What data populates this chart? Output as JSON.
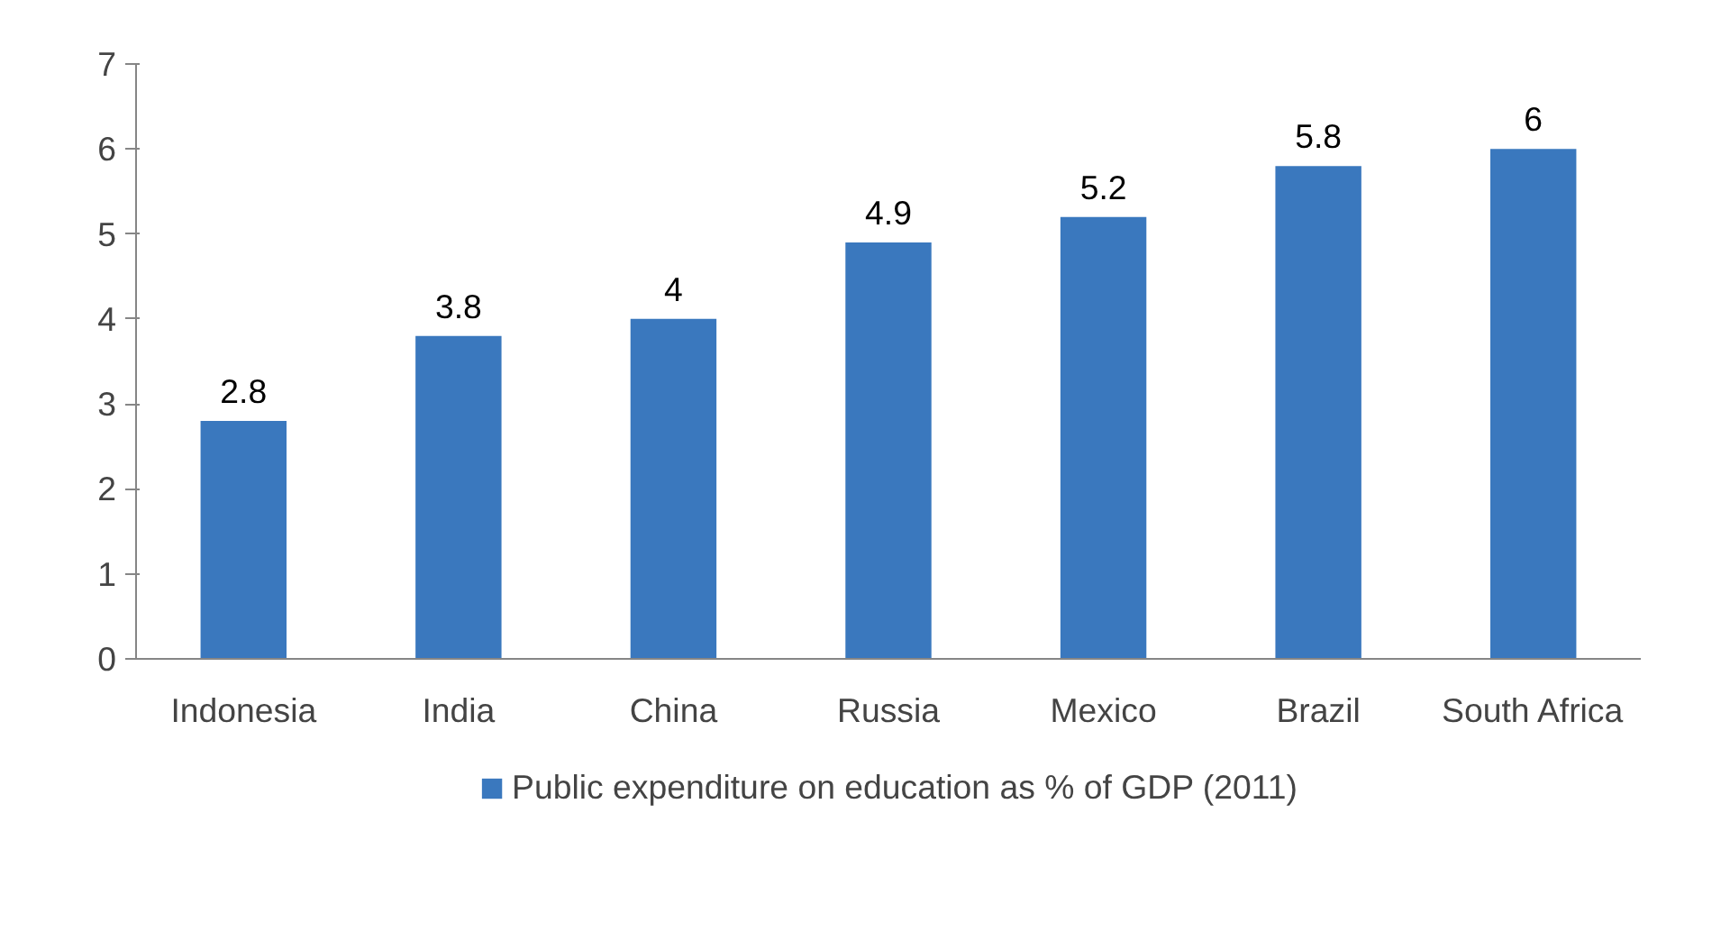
{
  "chart_data": {
    "type": "bar",
    "categories": [
      "Indonesia",
      "India",
      "China",
      "Russia",
      "Mexico",
      "Brazil",
      "South Africa"
    ],
    "series": [
      {
        "name": "Public expenditure on education as % of GDP (2011)",
        "color": "#3a78be",
        "values": [
          2.8,
          3.8,
          4,
          4.9,
          5.2,
          5.8,
          6
        ]
      }
    ],
    "ylim": [
      0,
      7
    ],
    "yticks": [
      0,
      1,
      2,
      3,
      4,
      5,
      6,
      7
    ],
    "data_labels": true,
    "grid": false,
    "legend": "bottom"
  }
}
